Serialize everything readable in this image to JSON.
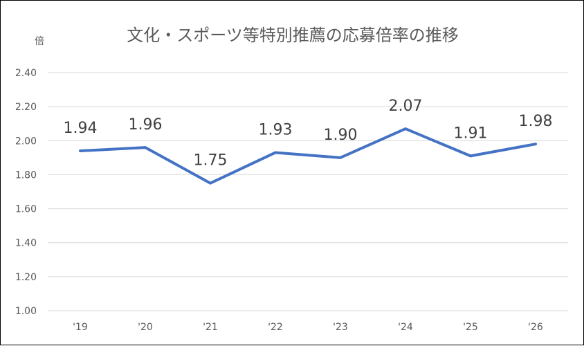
{
  "chart_data": {
    "type": "line",
    "title": "文化・スポーツ等特別推薦の応募倍率の推移",
    "ylabel": "倍",
    "xlabel": "",
    "categories": [
      "'19",
      "'20",
      "'21",
      "'22",
      "'23",
      "'24",
      "'25",
      "'26"
    ],
    "values": [
      1.94,
      1.96,
      1.75,
      1.93,
      1.9,
      2.07,
      1.91,
      1.98
    ],
    "data_labels": [
      "1.94",
      "1.96",
      "1.75",
      "1.93",
      "1.90",
      "2.07",
      "1.91",
      "1.98"
    ],
    "ylim": [
      1.0,
      2.4
    ],
    "yticks": [
      "1.00",
      "1.20",
      "1.40",
      "1.60",
      "1.80",
      "2.00",
      "2.20",
      "2.40"
    ],
    "grid": true,
    "legend": "none",
    "line_color": "#4472c4"
  }
}
